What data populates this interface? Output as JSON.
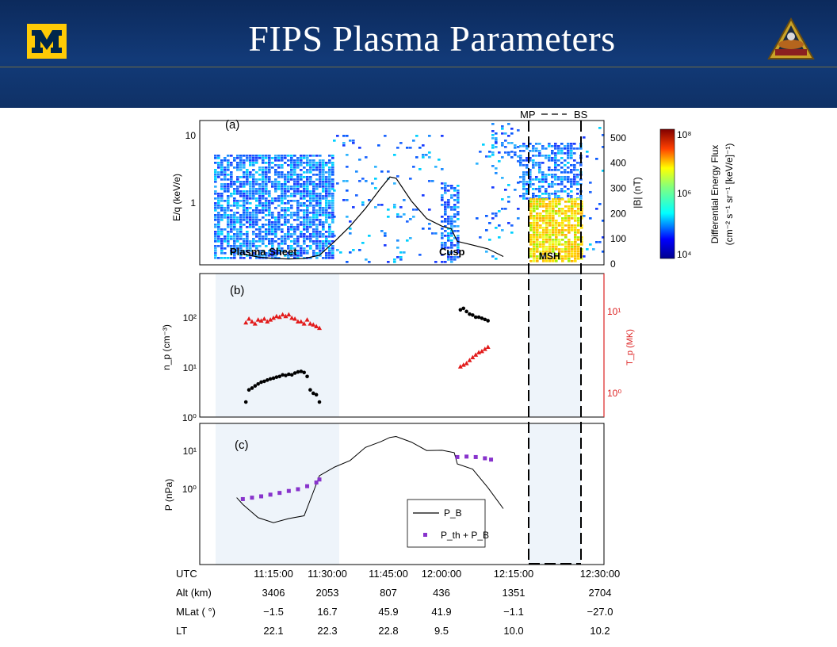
{
  "slide": {
    "title": "FIPS Plasma Parameters",
    "header_bg": "#123a78",
    "logo_left": "university-block-m-logo",
    "logo_right": "mission-patch-logo"
  },
  "chart_data": [
    {
      "type": "heatmap",
      "panel": "(a)",
      "ylabel": "E/q (keV/e)",
      "y_ticks": [
        "10",
        "1"
      ],
      "y2label": "|B| (nT)",
      "y2_ticks": [
        0,
        100,
        200,
        300,
        400,
        500
      ],
      "y2lim": [
        0,
        560
      ],
      "markers": [
        "MP",
        "BS"
      ],
      "region_labels": [
        "Plasma Sheet",
        "Cusp",
        "MSH"
      ],
      "colorbar": {
        "label_line1": "Differential Energy Flux",
        "label_line2": "(cm⁻² s⁻¹ sr⁻¹ [keV/e]⁻¹)",
        "ticks": [
          "10⁸",
          "10⁶",
          "10⁴"
        ]
      },
      "B_series": {
        "name": "|B|",
        "x": [
          "11:05",
          "11:10",
          "11:15",
          "11:20",
          "11:25",
          "11:30",
          "11:35",
          "11:40",
          "11:45",
          "11:50",
          "11:53",
          "11:55",
          "12:00",
          "12:05",
          "12:10",
          "12:13",
          "12:15",
          "12:20",
          "12:25",
          "12:30"
        ],
        "y": [
          40,
          28,
          22,
          20,
          22,
          35,
          90,
          150,
          220,
          300,
          345,
          340,
          250,
          180,
          150,
          140,
          90,
          75,
          60,
          30
        ]
      }
    },
    {
      "type": "scatter",
      "panel": "(b)",
      "ylabel": "n_p (cm⁻³)",
      "y_ticks": [
        "10⁰",
        "10¹",
        "10²"
      ],
      "y2label": "T_p (MK)",
      "y2_ticks": [
        "10⁰",
        "10¹"
      ],
      "yscale": "log",
      "series": [
        {
          "name": "n_p",
          "x": [
            "11:06",
            "11:07",
            "11:08",
            "11:09",
            "11:10",
            "11:11",
            "11:12",
            "11:13",
            "11:14",
            "11:15",
            "11:16",
            "11:17",
            "11:18",
            "11:19",
            "11:20",
            "11:21",
            "11:22",
            "11:23",
            "11:24",
            "11:25",
            "11:26",
            "11:27",
            "11:28",
            "11:29",
            "11:30",
            "12:16",
            "12:17",
            "12:18",
            "12:19",
            "12:20",
            "12:21",
            "12:22",
            "12:23",
            "12:24",
            "12:25"
          ],
          "y": [
            2,
            3.5,
            3.8,
            4.2,
            4.6,
            5,
            5.2,
            5.5,
            5.8,
            6,
            6.3,
            6.5,
            7,
            6.8,
            7.2,
            7,
            7.6,
            8,
            8.2,
            7.8,
            6.5,
            3.5,
            3,
            2.8,
            2,
            140,
            150,
            130,
            115,
            110,
            100,
            100,
            95,
            90,
            85
          ]
        },
        {
          "name": "T_p",
          "x": [
            "11:06",
            "11:07",
            "11:08",
            "11:09",
            "11:10",
            "11:11",
            "11:12",
            "11:13",
            "11:14",
            "11:15",
            "11:16",
            "11:17",
            "11:18",
            "11:19",
            "11:20",
            "11:21",
            "11:22",
            "11:23",
            "11:24",
            "11:25",
            "11:26",
            "11:27",
            "11:28",
            "11:29",
            "11:30",
            "12:16",
            "12:17",
            "12:18",
            "12:19",
            "12:20",
            "12:21",
            "12:22",
            "12:23",
            "12:24",
            "12:25"
          ],
          "y": [
            7,
            7.8,
            7.2,
            6.8,
            7.6,
            7.4,
            7.8,
            7.2,
            7.6,
            8,
            8.4,
            8.2,
            8.8,
            8.4,
            8.8,
            8,
            7.8,
            7.2,
            7.2,
            6.8,
            7.6,
            6.8,
            6.6,
            6.3,
            6.0,
            2,
            2.1,
            2.2,
            2.4,
            2.6,
            2.8,
            3,
            3.1,
            3.3,
            3.5
          ]
        }
      ]
    },
    {
      "type": "line",
      "panel": "(c)",
      "ylabel": "P (nPa)",
      "y_ticks": [
        "10⁰",
        "10¹"
      ],
      "yscale": "log",
      "legend": [
        "P_B",
        "P_th + P_B"
      ],
      "series": [
        {
          "name": "P_B",
          "x": [
            "11:03",
            "11:05",
            "11:10",
            "11:15",
            "11:20",
            "11:25",
            "11:28",
            "11:30",
            "11:35",
            "11:40",
            "11:45",
            "11:50",
            "11:53",
            "11:55",
            "12:00",
            "12:05",
            "12:10",
            "12:14",
            "12:15",
            "12:20",
            "12:25",
            "12:30"
          ],
          "y": [
            0.6,
            0.4,
            0.2,
            0.14,
            0.15,
            0.2,
            0.9,
            2,
            3.5,
            6,
            12,
            20,
            25,
            24,
            16,
            12,
            10,
            8,
            4,
            3,
            1,
            0.3
          ]
        },
        {
          "name": "P_th + P_B",
          "x": [
            "11:05",
            "11:08",
            "11:11",
            "11:14",
            "11:17",
            "11:20",
            "11:23",
            "11:26",
            "11:29",
            "11:30",
            "12:15",
            "12:18",
            "12:21",
            "12:24",
            "12:26"
          ],
          "y": [
            0.55,
            0.6,
            0.65,
            0.72,
            0.8,
            0.9,
            1.0,
            1.2,
            1.5,
            1.8,
            7,
            7.2,
            7,
            6.5,
            6
          ]
        }
      ]
    },
    {
      "type": "table",
      "rows": [
        {
          "label": "UTC",
          "values": [
            "",
            "11:15:00",
            "11:30:00",
            "11:45:00",
            "12:00:00",
            "12:15:00",
            "12:30:00"
          ]
        },
        {
          "label": "Alt (km)",
          "values": [
            "",
            "3406",
            "2053",
            "807",
            "436",
            "1351",
            "2704"
          ]
        },
        {
          "label": "MLat ( °)",
          "values": [
            "",
            "−1.5",
            "16.7",
            "45.9",
            "41.9",
            "−1.1",
            "−27.0"
          ]
        },
        {
          "label": "LT",
          "values": [
            "",
            "22.1",
            "22.3",
            "22.8",
            "9.5",
            "10.0",
            "10.2"
          ]
        }
      ]
    }
  ]
}
